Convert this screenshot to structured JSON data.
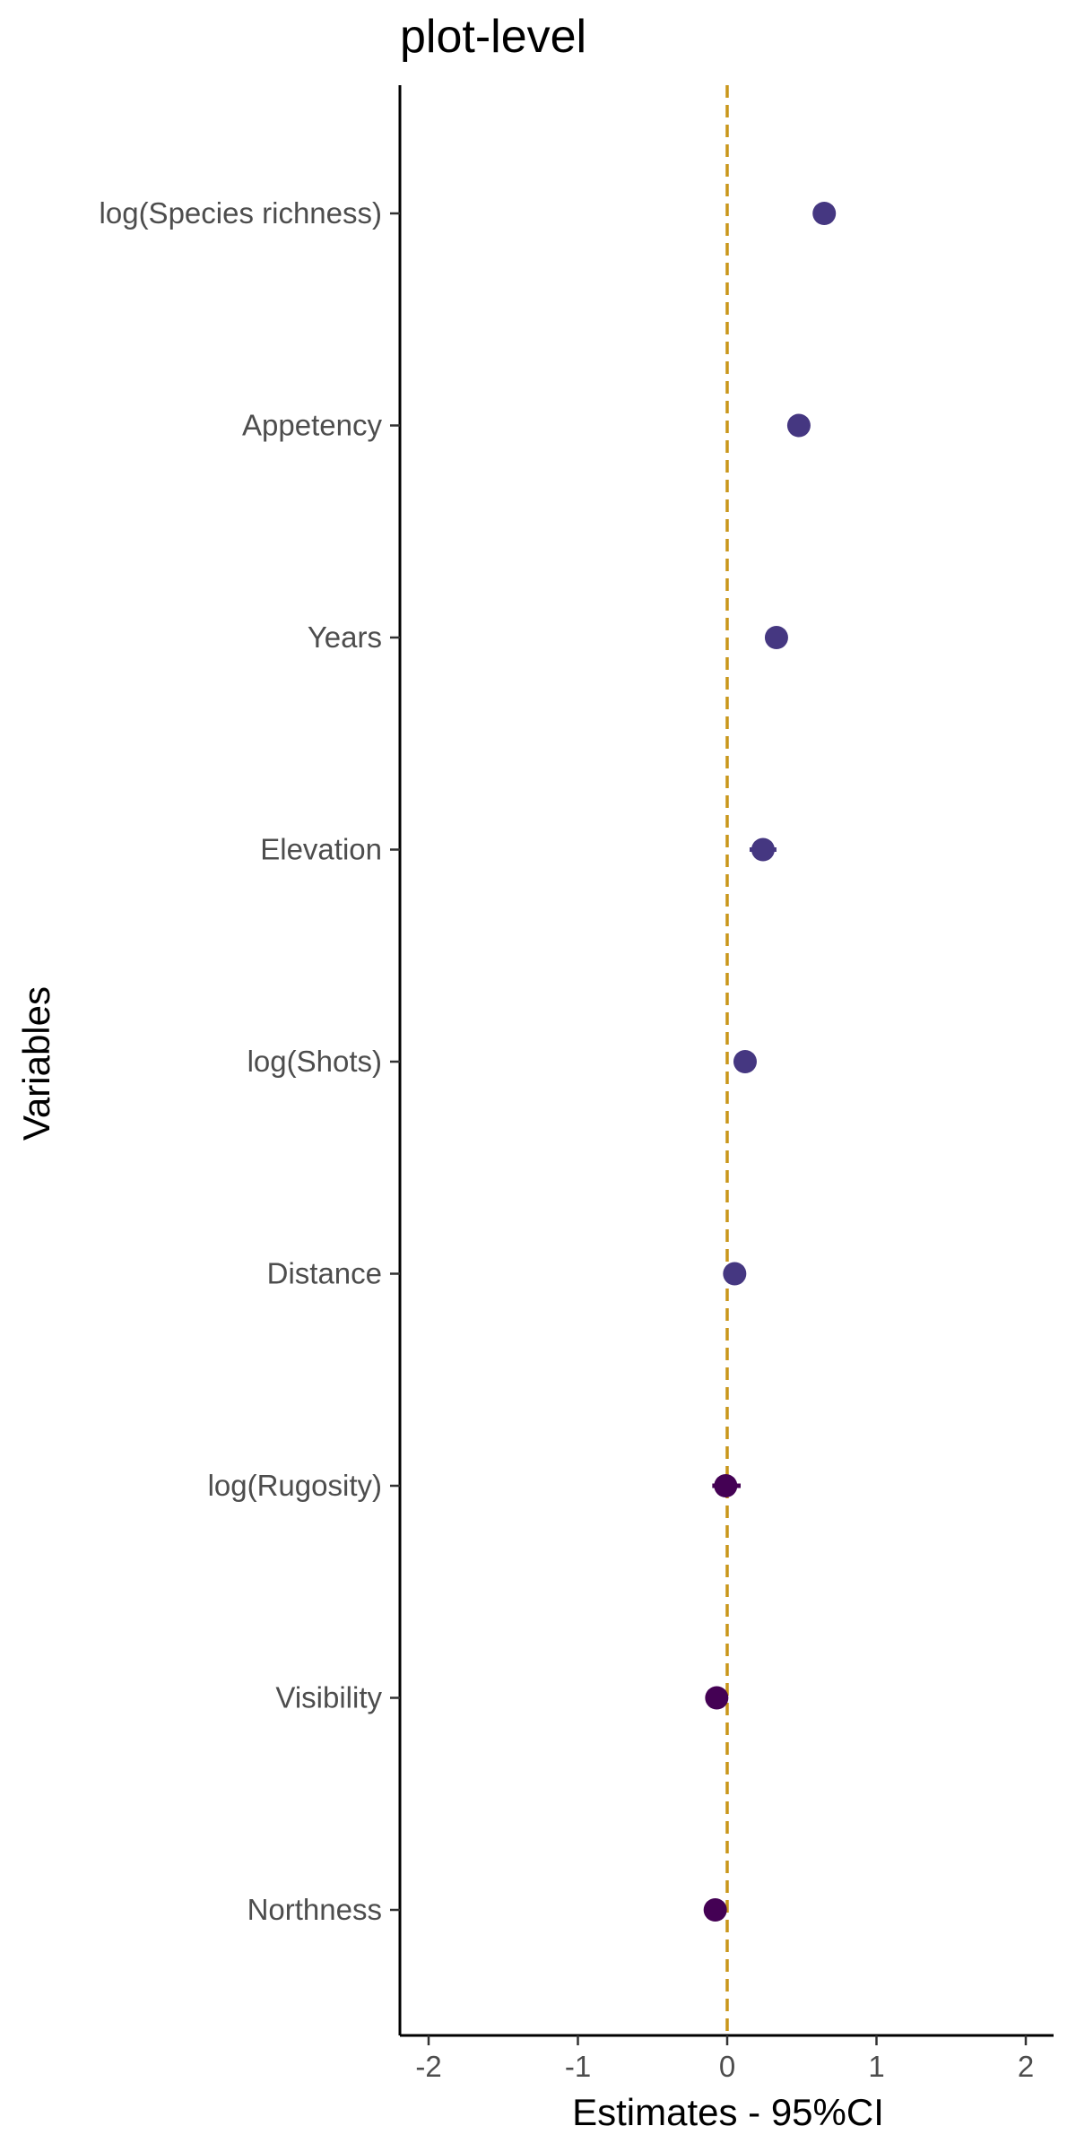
{
  "chart_data": {
    "type": "scatter",
    "title": "plot-level",
    "xlabel": "Estimates - 95%CI",
    "ylabel": "Variables",
    "xlim": [
      -2.2,
      2.2
    ],
    "x_ticks": [
      -2,
      -1,
      0,
      1,
      2
    ],
    "x_tick_labels": [
      "-2",
      "-1",
      "0",
      "1",
      "2"
    ],
    "reference_line": {
      "x": 0,
      "style": "dashed",
      "color": "#C9961A"
    },
    "grid": false,
    "legend": "none",
    "categories": [
      "log(Species richness)",
      "Appetency",
      "Years",
      "Elevation",
      "log(Shots)",
      "Distance",
      "log(Rugosity)",
      "Visibility",
      "Northness"
    ],
    "estimates": [
      0.65,
      0.48,
      0.33,
      0.24,
      0.12,
      0.05,
      -0.01,
      -0.07,
      -0.08
    ],
    "ci_low": [
      0.58,
      0.41,
      0.29,
      0.15,
      0.05,
      0.0,
      -0.1,
      -0.14,
      -0.15
    ],
    "ci_high": [
      0.72,
      0.55,
      0.37,
      0.33,
      0.19,
      0.11,
      0.09,
      0.0,
      -0.01
    ],
    "point_colors": [
      "#453781",
      "#453781",
      "#453781",
      "#453781",
      "#453781",
      "#453781",
      "#440154",
      "#440154",
      "#440154"
    ]
  }
}
